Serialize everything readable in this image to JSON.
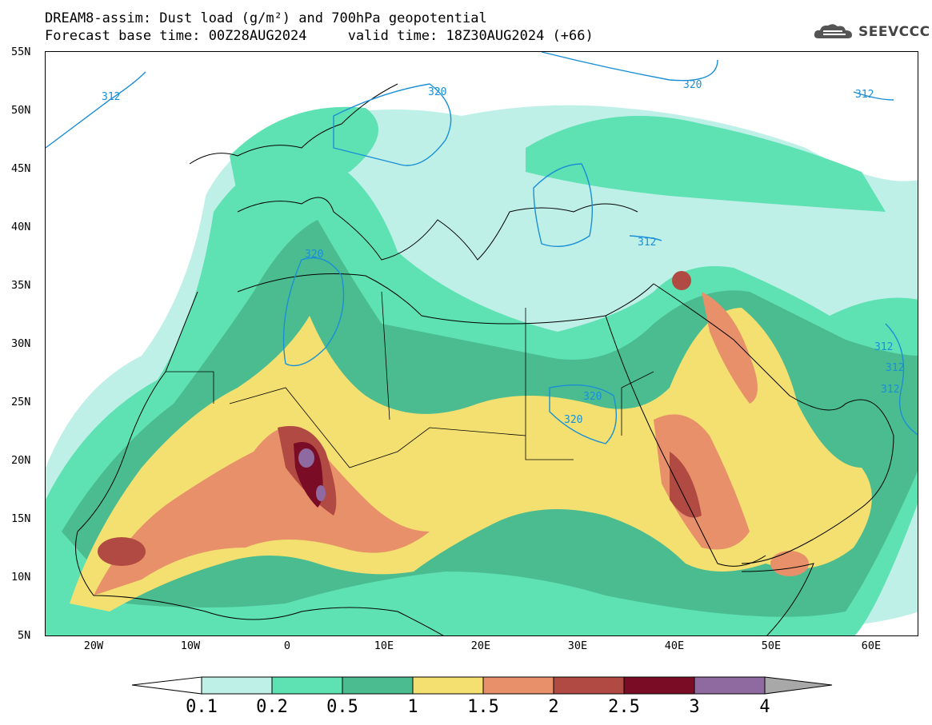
{
  "header": {
    "title_line1": "DREAM8-assim: Dust load (g/m²) and 700hPa geopotential",
    "title_line2": "Forecast base time: 00Z28AUG2024     valid time: 18Z30AUG2024 (+66)"
  },
  "logo": {
    "text": "SEEVCCC",
    "icon": "cloud-logo-icon"
  },
  "axes": {
    "latitudes": [
      "55N",
      "50N",
      "45N",
      "40N",
      "35N",
      "30N",
      "25N",
      "20N",
      "15N",
      "10N",
      "5N"
    ],
    "longitudes": [
      "20W",
      "10W",
      "0",
      "10E",
      "20E",
      "30E",
      "40E",
      "50E",
      "60E"
    ],
    "lon_range": [
      -25,
      65
    ],
    "lat_range": [
      5,
      55
    ]
  },
  "contour_labels": [
    "312",
    "320",
    "320",
    "312",
    "320",
    "312",
    "312",
    "312",
    "320",
    "320",
    "312"
  ],
  "colorbar": {
    "labels": [
      "0.1",
      "0.2",
      "0.5",
      "1",
      "1.5",
      "2",
      "2.5",
      "3",
      "4"
    ],
    "colors": [
      "#bff0e8",
      "#5ee1b3",
      "#4bbc90",
      "#f3e070",
      "#e8906a",
      "#b04a42",
      "#7a0c26",
      "#8e6aa0",
      "#a8a8a8"
    ],
    "under_color": "#ffffff"
  },
  "colors": {
    "contour": "#1a8fd6"
  }
}
